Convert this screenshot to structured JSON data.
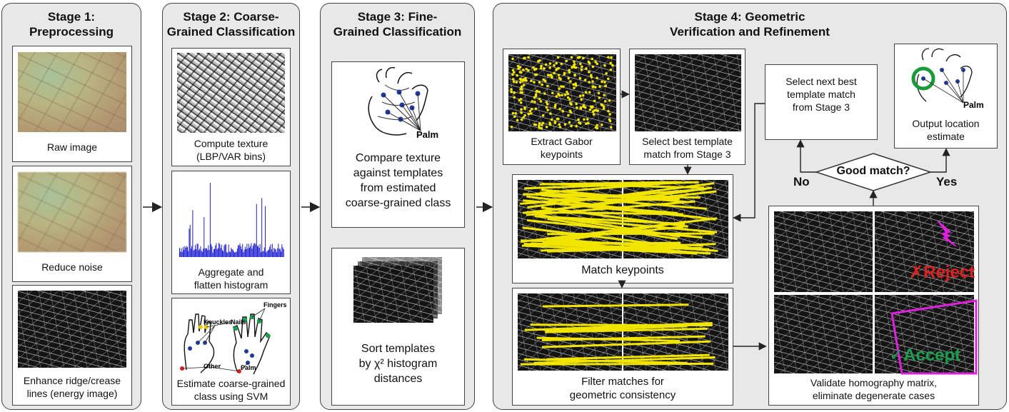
{
  "stage1": {
    "title": "Stage 1:\nPreprocessing",
    "steps": [
      "Raw image",
      "Reduce noise",
      "Enhance ridge/crease\nlines (energy image)"
    ]
  },
  "stage2": {
    "title": "Stage 2: Coarse-\nGrained Classification",
    "steps": [
      "Compute texture\n(LBP/VAR bins)",
      "Aggregate and\nflatten histogram",
      "Estimate coarse-grained\nclass using SVM"
    ],
    "hand_labels": [
      "Fingers",
      "Knuckles",
      "Nails",
      "Other",
      "Palm"
    ]
  },
  "stage3": {
    "title": "Stage 3: Fine-\nGrained Classification",
    "steps": [
      "Compare texture\nagainst templates\nfrom estimated\ncoarse-grained class",
      "Sort templates\nby χ² histogram\ndistances"
    ],
    "palm_label": "Palm"
  },
  "stage4": {
    "title": "Stage 4: Geometric\nVerification and Refinement",
    "steps": {
      "extract": "Extract Gabor\nkeypoints",
      "select_best": "Select best template\nmatch from Stage 3",
      "select_next": "Select next best\ntemplate match\nfrom Stage 3",
      "output": "Output location\nestimate",
      "match": "Match keypoints",
      "filter": "Filter matches for\ngeometric consistency",
      "validate": "Validate homography matrix,\neliminate degenerate cases"
    },
    "decision": "Good match?",
    "no_label": "No",
    "yes_label": "Yes",
    "reject_label": "✗Reject",
    "accept_label": "✓Accept",
    "palm_label": "Palm"
  },
  "colors": {
    "keypoint": "#f2e600",
    "match_line": "#f2e600",
    "reject": "#e02020",
    "accept": "#18a050",
    "homography": "#e020e0",
    "histogram": "#1a1ad0",
    "location_ring": "#1a9a3a",
    "node_dot": "#1f3a9a"
  }
}
